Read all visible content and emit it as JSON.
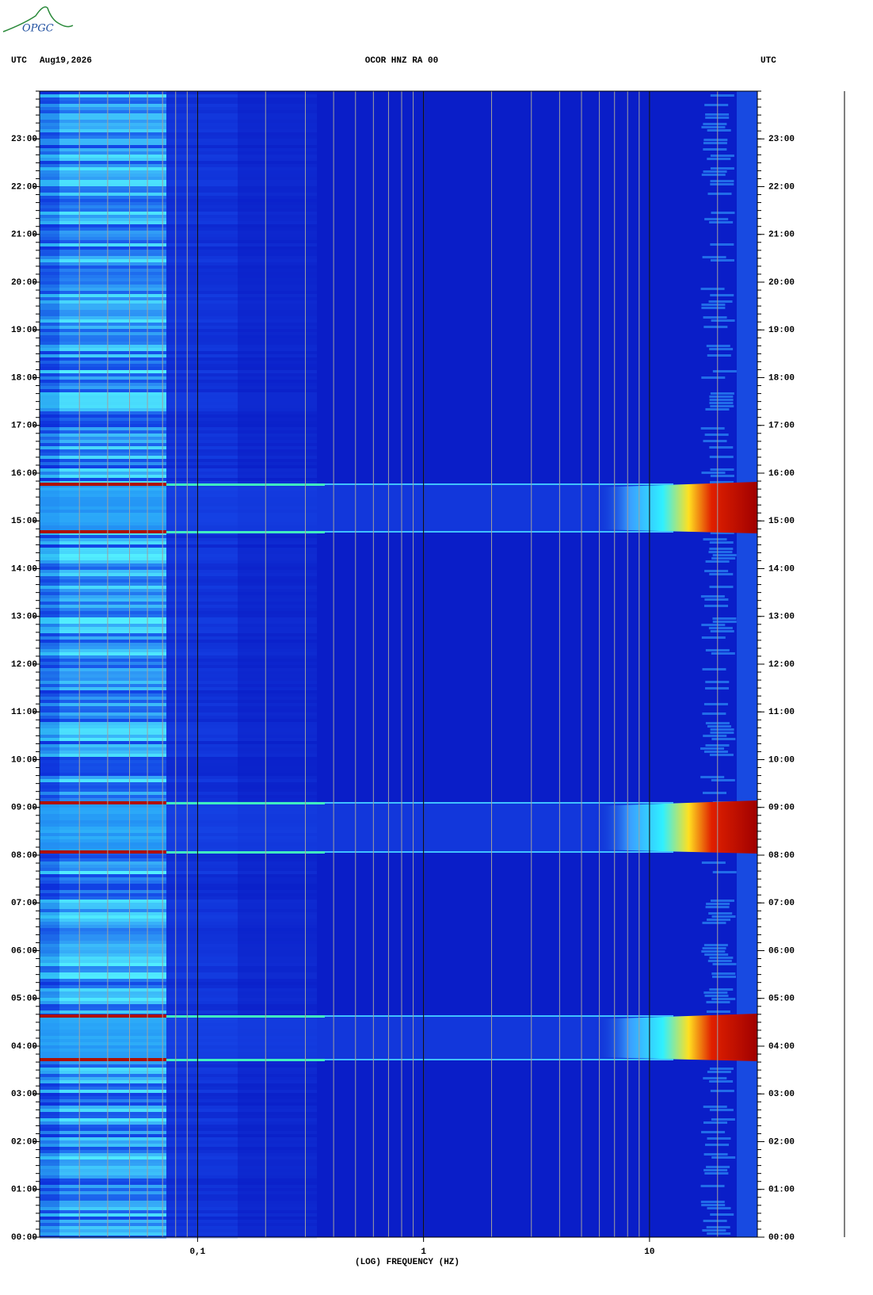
{
  "logo": "OPGC",
  "chart_data": {
    "type": "spectrogram",
    "title": "OCOR HNZ RA 00",
    "date": "Aug19,2026",
    "y_label_left": "UTC",
    "y_label_right": "UTC",
    "x_label": "(LOG) FREQUENCY (HZ)",
    "log_x": true,
    "xlim": [
      0.02,
      30
    ],
    "xticks": [
      {
        "value": 0.1,
        "label": "0,1"
      },
      1,
      10
    ],
    "xgrid": [
      0.02,
      0.03,
      0.04,
      0.05,
      0.06,
      0.07,
      0.08,
      0.09,
      0.1,
      0.2,
      0.3,
      0.4,
      0.5,
      0.6,
      0.7,
      0.8,
      0.9,
      1,
      2,
      3,
      4,
      5,
      6,
      7,
      8,
      9,
      10,
      20
    ],
    "ylim": [
      0,
      24
    ],
    "yticks": [
      {
        "value": 0,
        "label": "00:00"
      },
      {
        "value": 1,
        "label": "01:00"
      },
      {
        "value": 2,
        "label": "02:00"
      },
      {
        "value": 3,
        "label": "03:00"
      },
      {
        "value": 4,
        "label": "04:00"
      },
      {
        "value": 5,
        "label": "05:00"
      },
      {
        "value": 6,
        "label": "06:00"
      },
      {
        "value": 7,
        "label": "07:00"
      },
      {
        "value": 8,
        "label": "08:00"
      },
      {
        "value": 9,
        "label": "09:00"
      },
      {
        "value": 10,
        "label": "10:00"
      },
      {
        "value": 11,
        "label": "11:00"
      },
      {
        "value": 12,
        "label": "12:00"
      },
      {
        "value": 13,
        "label": "13:00"
      },
      {
        "value": 14,
        "label": "14:00"
      },
      {
        "value": 15,
        "label": "15:00"
      },
      {
        "value": 16,
        "label": "16:00"
      },
      {
        "value": 17,
        "label": "17:00"
      },
      {
        "value": 18,
        "label": "18:00"
      },
      {
        "value": 19,
        "label": "19:00"
      },
      {
        "value": 20,
        "label": "20:00"
      },
      {
        "value": 21,
        "label": "21:00"
      },
      {
        "value": 22,
        "label": "22:00"
      },
      {
        "value": 23,
        "label": "23:00"
      }
    ]
  }
}
